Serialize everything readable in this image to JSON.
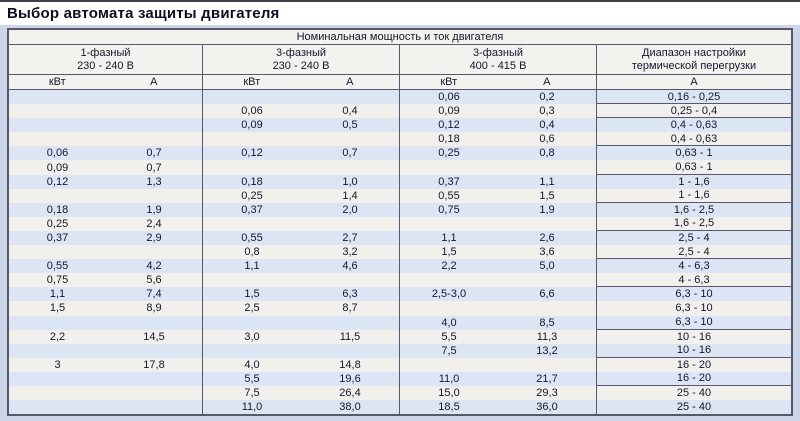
{
  "title": "Выбор автомата защиты двигателя",
  "table": {
    "top_header": "Номинальная мощность и ток двигателя",
    "groups": [
      {
        "line1": "1-фазный",
        "line2": "230 - 240 В",
        "col1": "кВт",
        "col2": "А"
      },
      {
        "line1": "3-фазный",
        "line2": "230 - 240 В",
        "col1": "кВт",
        "col2": "А"
      },
      {
        "line1": "3-фазный",
        "line2": "400 - 415 В",
        "col1": "кВт",
        "col2": "А"
      },
      {
        "line1": "Диапазон настройки",
        "line2": "термической перегрузки",
        "col1": "А"
      }
    ],
    "rows": [
      {
        "cells": [
          "",
          "",
          "",
          "",
          "0,06",
          "0,2",
          "0,16 - 0,25"
        ],
        "group_end": true
      },
      {
        "cells": [
          "",
          "",
          "0,06",
          "0,4",
          "0,09",
          "0,3",
          "0,25 - 0,4"
        ],
        "group_end": true
      },
      {
        "cells": [
          "",
          "",
          "0,09",
          "0,5",
          "0,12",
          "0,4",
          "0,4 - 0,63"
        ],
        "group_end": false
      },
      {
        "cells": [
          "",
          "",
          "",
          "",
          "0,18",
          "0,6",
          "0,4 - 0,63"
        ],
        "group_end": true
      },
      {
        "cells": [
          "0,06",
          "0,7",
          "0,12",
          "0,7",
          "0,25",
          "0,8",
          "0,63 - 1"
        ],
        "group_end": false
      },
      {
        "cells": [
          "0,09",
          "0,7",
          "",
          "",
          "",
          "",
          "0,63 - 1"
        ],
        "group_end": true
      },
      {
        "cells": [
          "0,12",
          "1,3",
          "0,18",
          "1,0",
          "0,37",
          "1,1",
          "1 - 1,6"
        ],
        "group_end": false
      },
      {
        "cells": [
          "",
          "",
          "0,25",
          "1,4",
          "0,55",
          "1,5",
          "1 - 1,6"
        ],
        "group_end": true
      },
      {
        "cells": [
          "0,18",
          "1,9",
          "0,37",
          "2,0",
          "0,75",
          "1,9",
          "1,6 - 2,5"
        ],
        "group_end": false
      },
      {
        "cells": [
          "0,25",
          "2,4",
          "",
          "",
          "",
          "",
          "1,6 - 2,5"
        ],
        "group_end": true
      },
      {
        "cells": [
          "0,37",
          "2,9",
          "0,55",
          "2,7",
          "1,1",
          "2,6",
          "2,5 - 4"
        ],
        "group_end": false
      },
      {
        "cells": [
          "",
          "",
          "0,8",
          "3,2",
          "1,5",
          "3,6",
          "2,5 - 4"
        ],
        "group_end": true
      },
      {
        "cells": [
          "0,55",
          "4,2",
          "1,1",
          "4,6",
          "2,2",
          "5,0",
          "4 - 6,3"
        ],
        "group_end": false
      },
      {
        "cells": [
          "0,75",
          "5,6",
          "",
          "",
          "",
          "",
          "4 - 6,3"
        ],
        "group_end": true
      },
      {
        "cells": [
          "1,1",
          "7,4",
          "1,5",
          "6,3",
          "2,5-3,0",
          "6,6",
          "6,3 - 10"
        ],
        "group_end": false
      },
      {
        "cells": [
          "1,5",
          "8,9",
          "2,5",
          "8,7",
          "",
          "",
          "6,3 - 10"
        ],
        "group_end": false
      },
      {
        "cells": [
          "",
          "",
          "",
          "",
          "4,0",
          "8,5",
          "6,3 - 10"
        ],
        "group_end": true
      },
      {
        "cells": [
          "2,2",
          "14,5",
          "3,0",
          "11,5",
          "5,5",
          "11,3",
          "10 - 16"
        ],
        "group_end": false
      },
      {
        "cells": [
          "",
          "",
          "",
          "",
          "7,5",
          "13,2",
          "10 - 16"
        ],
        "group_end": true
      },
      {
        "cells": [
          "3",
          "17,8",
          "4,0",
          "14,8",
          "",
          "",
          "16 - 20"
        ],
        "group_end": false
      },
      {
        "cells": [
          "",
          "",
          "5,5",
          "19,6",
          "11,0",
          "21,7",
          "16 - 20"
        ],
        "group_end": true
      },
      {
        "cells": [
          "",
          "",
          "7,5",
          "26,4",
          "15,0",
          "29,3",
          "25 - 40"
        ],
        "group_end": false
      },
      {
        "cells": [
          "",
          "",
          "11,0",
          "38,0",
          "18,5",
          "36,0",
          "25 - 40"
        ],
        "group_end": false
      }
    ]
  },
  "colors": {
    "page_bg": "#cdd5e9",
    "table_border": "#57576e",
    "header_bg": "#f3f2ee",
    "row_stripe_blue": "#dbe5f4",
    "row_stripe_light": "#f1f0ec",
    "text": "#16162c",
    "top_bar": "#40404c"
  }
}
